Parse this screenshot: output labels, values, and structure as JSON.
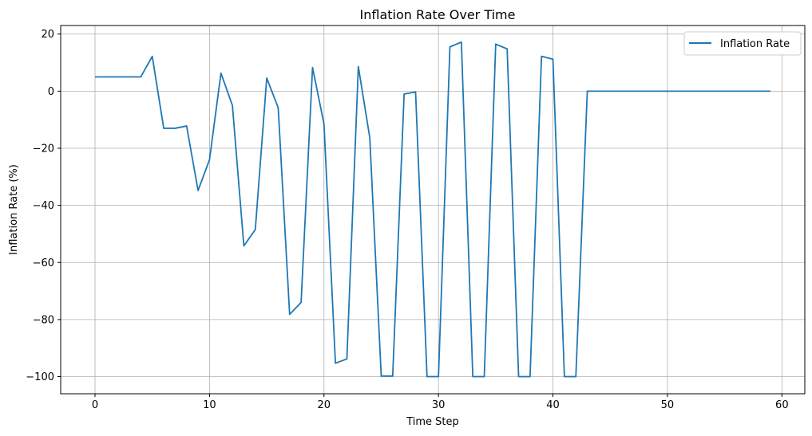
{
  "chart_data": {
    "type": "line",
    "title": "Inflation Rate Over Time",
    "xlabel": "Time Step",
    "ylabel": "Inflation Rate (%)",
    "xlim": [
      -3.0,
      62.0
    ],
    "ylim": [
      -106,
      23
    ],
    "xticks": [
      0,
      10,
      20,
      30,
      40,
      50,
      60
    ],
    "yticks": [
      20,
      0,
      -20,
      -40,
      -60,
      -80,
      -100
    ],
    "xtick_labels": [
      "0",
      "10",
      "20",
      "30",
      "40",
      "50",
      "60"
    ],
    "ytick_labels": [
      "20",
      "0",
      "−20",
      "−40",
      "−60",
      "−80",
      "−100"
    ],
    "grid": true,
    "legend_position": "top-right",
    "series": [
      {
        "name": "Inflation Rate",
        "color": "#1f77b4",
        "x": [
          0,
          1,
          2,
          3,
          4,
          5,
          6,
          7,
          8,
          9,
          10,
          11,
          12,
          13,
          14,
          15,
          16,
          17,
          18,
          19,
          20,
          21,
          22,
          23,
          24,
          25,
          26,
          27,
          28,
          29,
          30,
          31,
          32,
          33,
          34,
          35,
          36,
          37,
          38,
          39,
          40,
          41,
          42,
          43,
          44,
          45,
          46,
          47,
          48,
          49,
          50,
          51,
          52,
          53,
          54,
          55,
          56,
          57,
          58,
          59
        ],
        "values": [
          5,
          5,
          5,
          5,
          5,
          12.2,
          -13,
          -13,
          -12.2,
          -34.8,
          -24,
          6.3,
          -5,
          -54.2,
          -48.5,
          4.6,
          -5.8,
          -78.2,
          -74,
          8.3,
          -11.5,
          -95.3,
          -93.8,
          8.6,
          -16.3,
          -99.8,
          -99.8,
          -1,
          -0.3,
          -100,
          -100,
          15.5,
          17.2,
          -100,
          -100,
          16.5,
          14.8,
          -100,
          -100,
          12.2,
          11.2,
          -100,
          -100,
          0,
          0,
          0,
          0,
          0,
          0,
          0,
          0,
          0,
          0,
          0,
          0,
          0,
          0,
          0,
          0,
          0
        ]
      }
    ]
  }
}
